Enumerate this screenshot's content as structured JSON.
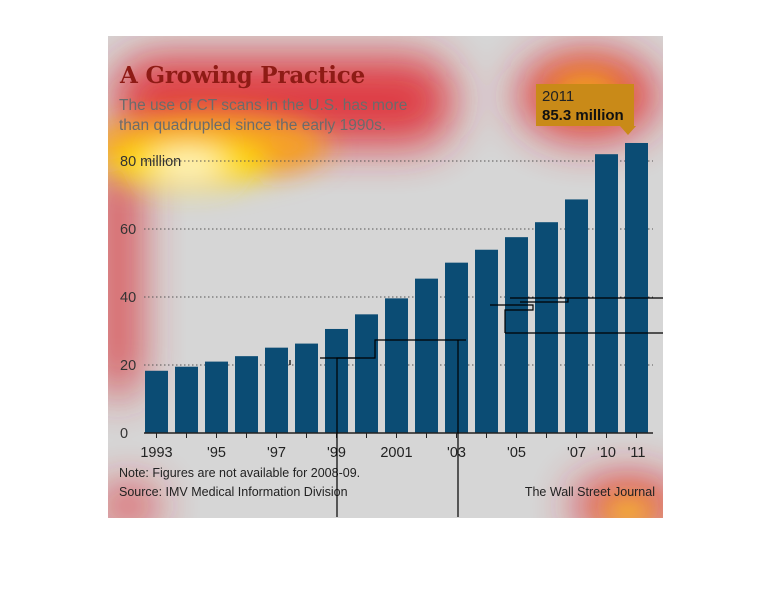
{
  "chart_data": {
    "type": "bar",
    "title": "A Growing Practice",
    "subtitle": "The use of CT scans in the U.S. has more than quadrupled since the early 1990s.",
    "categories": [
      "1993",
      "1994",
      "1995",
      "1996",
      "1997",
      "1998",
      "1999",
      "2000",
      "2001",
      "2002",
      "2003",
      "2004",
      "2005",
      "2006",
      "2007",
      "2010",
      "2011"
    ],
    "tick_labels": [
      "1993",
      "",
      "'95",
      "",
      "'97",
      "",
      "'99",
      "",
      "2001",
      "",
      "'03",
      "",
      "'05",
      "",
      "'07",
      "'10",
      "'11"
    ],
    "values": [
      18.3,
      19.5,
      21.0,
      22.6,
      25.1,
      26.3,
      30.6,
      34.9,
      39.6,
      45.4,
      50.1,
      53.9,
      57.6,
      62.0,
      68.7,
      82.0,
      85.3
    ],
    "ylabel": "",
    "y_ticks": [
      0,
      20,
      40,
      60,
      80
    ],
    "y_tick_labels": [
      "0",
      "20",
      "40",
      "60",
      "80 million"
    ],
    "ylim": [
      0,
      90
    ],
    "grid": "dotted horizontal",
    "bar_color": "#0b4c74",
    "callout": {
      "year": "2011",
      "value": "85.3 million"
    },
    "note": "Note: Figures are not available for 2008-09.",
    "source": "Source: IMV Medical Information Division",
    "credit": "The Wall Street Journal"
  },
  "colors": {
    "background": "#d6d6d6",
    "title": "#8e1b15",
    "callout": "#c98a18",
    "bar": "#0b4c74"
  }
}
